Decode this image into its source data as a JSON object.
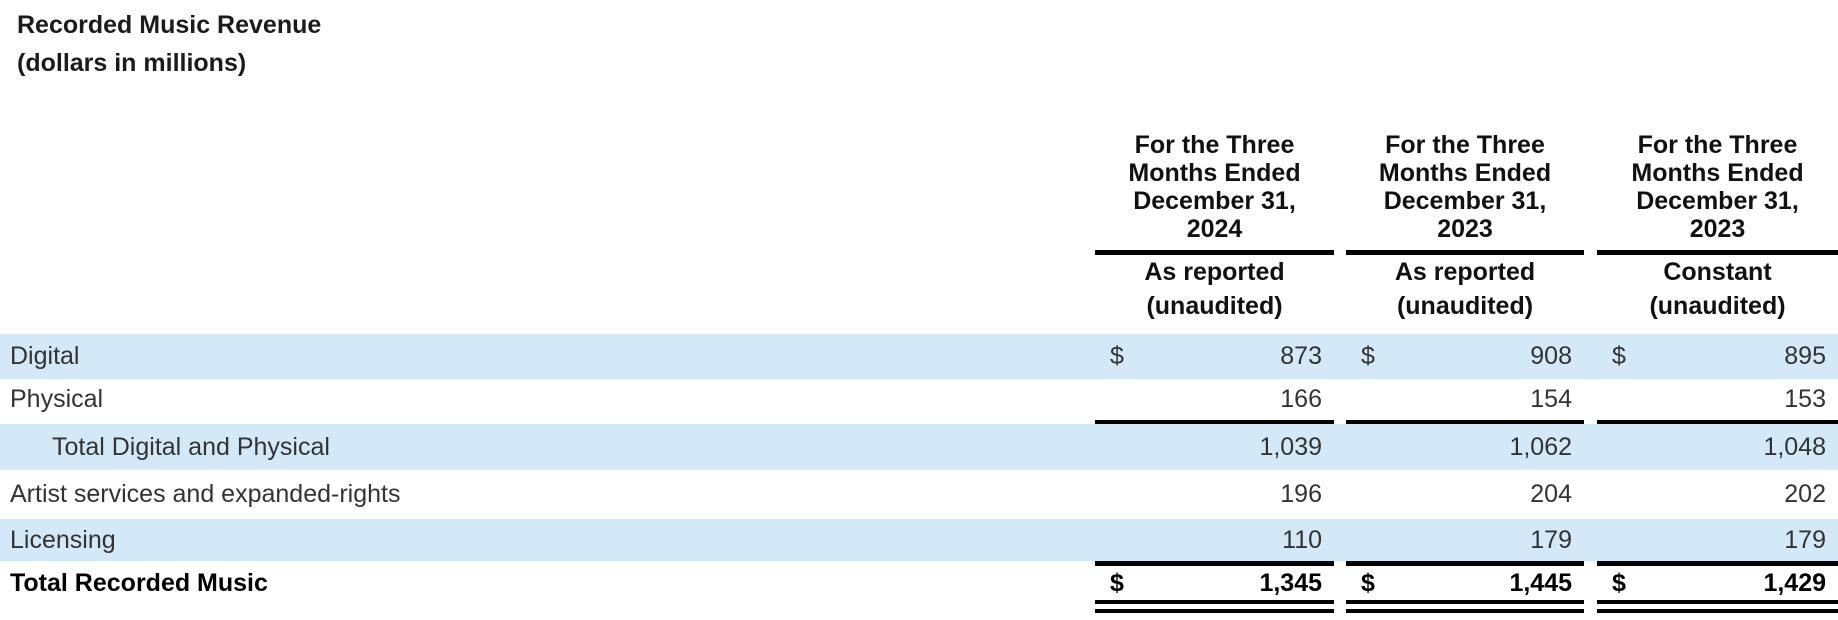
{
  "title": "Recorded Music Revenue",
  "subtitle": "(dollars in millions)",
  "table": {
    "currency": "$",
    "columns": [
      {
        "period_lines": [
          "For the Three",
          "Months Ended",
          "December 31,",
          "2024"
        ],
        "subheader": "As reported",
        "note": "(unaudited)"
      },
      {
        "period_lines": [
          "For the Three",
          "Months Ended",
          "December 31,",
          "2023"
        ],
        "subheader": "As reported",
        "note": "(unaudited)"
      },
      {
        "period_lines": [
          "For the Three",
          "Months Ended",
          "December 31,",
          "2023"
        ],
        "subheader": "Constant",
        "note": "(unaudited)"
      }
    ],
    "rows": [
      {
        "label": "Digital",
        "values": [
          "873",
          "908",
          "895"
        ]
      },
      {
        "label": "Physical",
        "values": [
          "166",
          "154",
          "153"
        ]
      },
      {
        "label": "Total Digital and Physical",
        "values": [
          "1,039",
          "1,062",
          "1,048"
        ]
      },
      {
        "label": "Artist services and expanded-rights",
        "values": [
          "196",
          "204",
          "202"
        ]
      },
      {
        "label": "Licensing",
        "values": [
          "110",
          "179",
          "179"
        ]
      },
      {
        "label": "Total Recorded Music",
        "values": [
          "1,345",
          "1,445",
          "1,429"
        ]
      }
    ]
  },
  "colors": {
    "row_highlight": "#d3e9f8",
    "rule": "#000000",
    "text": "#333333"
  }
}
